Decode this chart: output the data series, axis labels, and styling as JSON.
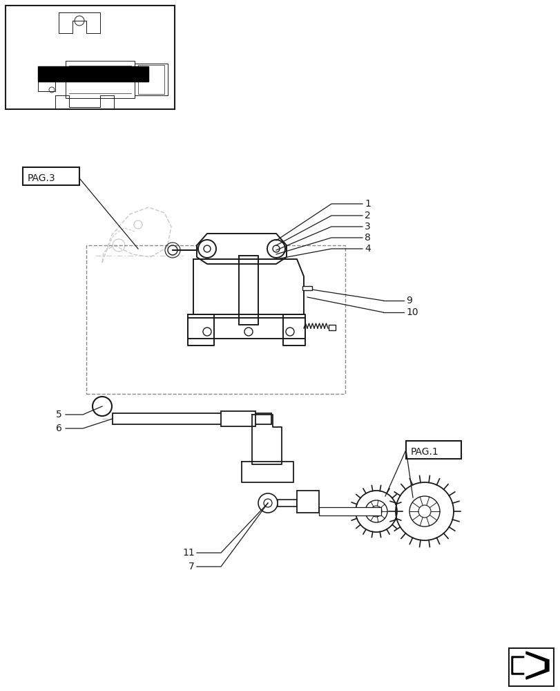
{
  "bg_color": "#ffffff",
  "line_color": "#1a1a1a",
  "light_line_color": "#aaaaaa",
  "dashed_line_color": "#888888"
}
